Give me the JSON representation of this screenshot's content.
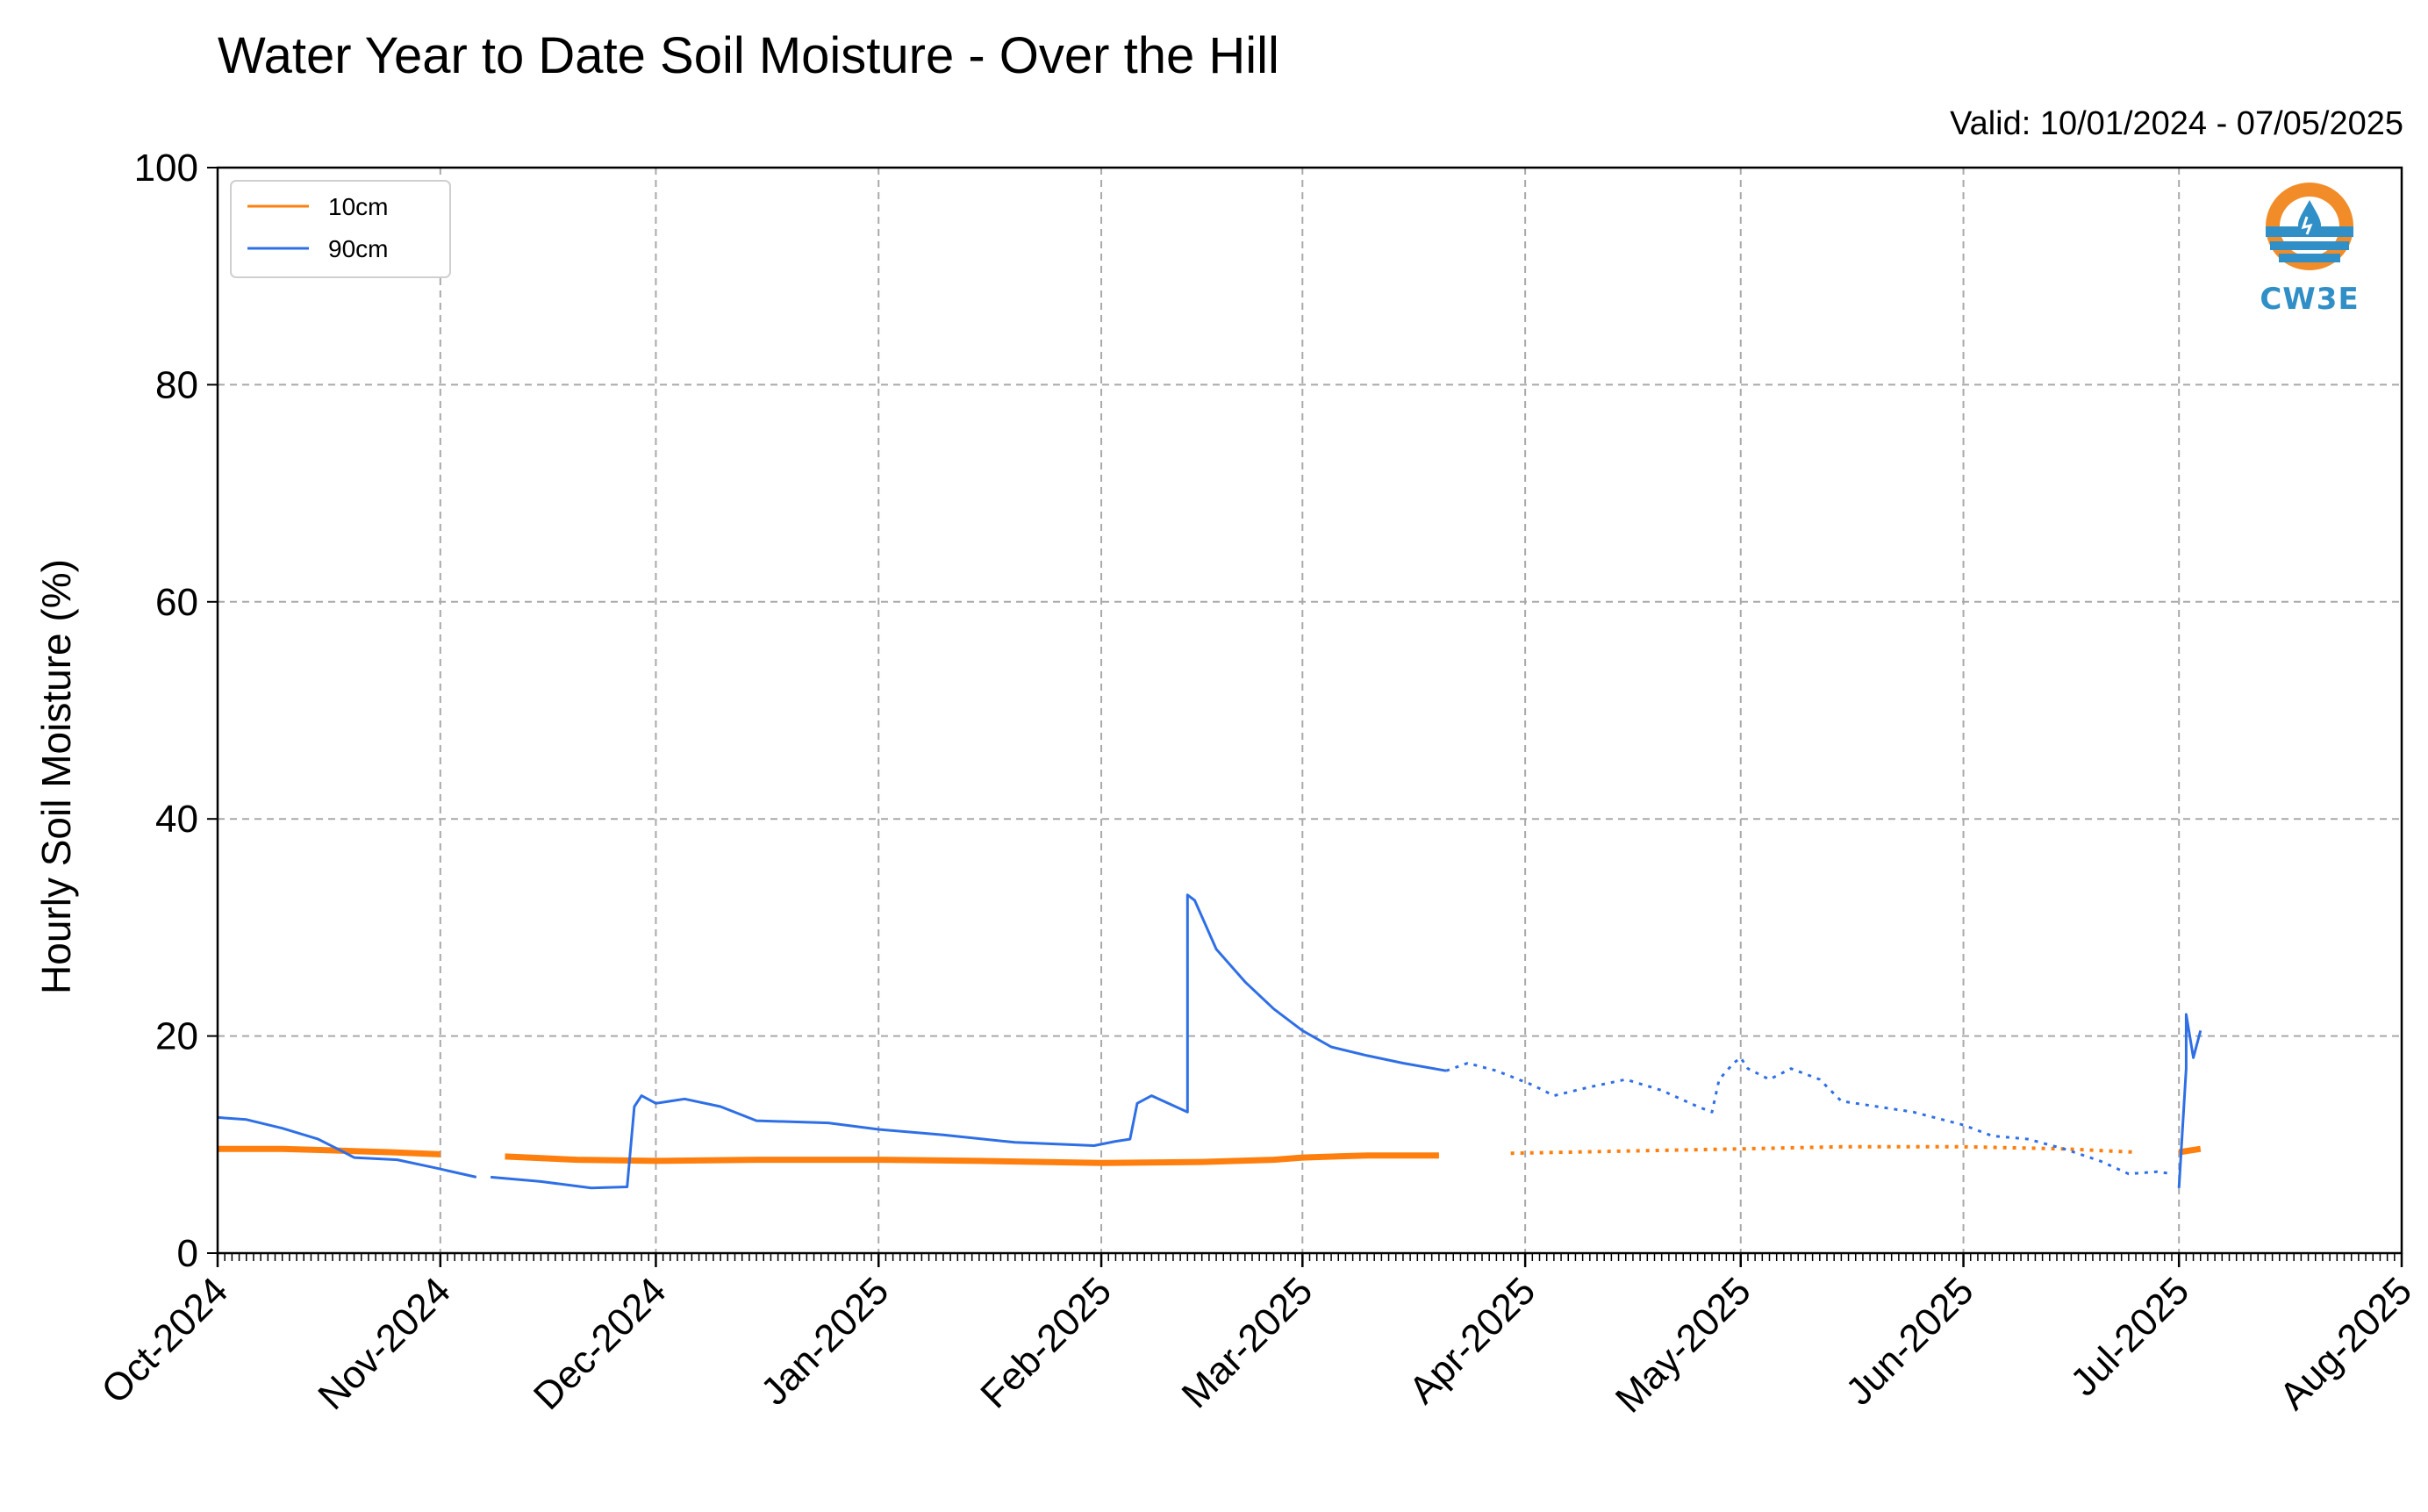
{
  "header": {
    "title": "Water Year to Date Soil Moisture - Over the Hill",
    "valid": "Valid: 10/01/2024 - 07/05/2025"
  },
  "logo": {
    "text": "CW3E",
    "icon": "cw3e-water-drop-logo"
  },
  "colors": {
    "10cm": "#ff7f0e",
    "90cm": "#2f6fe6",
    "grid": "#a9a9a9",
    "logo_orange": "#f28c28",
    "logo_blue": "#2f8fc6"
  },
  "chart_data": {
    "type": "line",
    "title": "Water Year to Date Soil Moisture - Over the Hill",
    "ylabel": "Hourly Soil Moisture (%)",
    "xlabel": "",
    "ylim": [
      0,
      100
    ],
    "yticks": [
      0,
      20,
      40,
      60,
      80,
      100
    ],
    "xlim": [
      "2024-10-01",
      "2025-08-01"
    ],
    "xticks": [
      {
        "date": "2024-10-01",
        "label": "Oct-2024"
      },
      {
        "date": "2024-11-01",
        "label": "Nov-2024"
      },
      {
        "date": "2024-12-01",
        "label": "Dec-2024"
      },
      {
        "date": "2025-01-01",
        "label": "Jan-2025"
      },
      {
        "date": "2025-02-01",
        "label": "Feb-2025"
      },
      {
        "date": "2025-03-01",
        "label": "Mar-2025"
      },
      {
        "date": "2025-04-01",
        "label": "Apr-2025"
      },
      {
        "date": "2025-05-01",
        "label": "May-2025"
      },
      {
        "date": "2025-06-01",
        "label": "Jun-2025"
      },
      {
        "date": "2025-07-01",
        "label": "Jul-2025"
      },
      {
        "date": "2025-08-01",
        "label": "Aug-2025"
      }
    ],
    "grid": true,
    "legend_position": "top-left",
    "series": [
      {
        "name": "10cm",
        "color": "#ff7f0e",
        "points": [
          [
            "2024-10-01",
            9.6
          ],
          [
            "2024-10-10",
            9.6
          ],
          [
            "2024-10-20",
            9.4
          ],
          [
            "2024-10-25",
            9.3
          ],
          [
            "2024-11-01",
            9.1
          ],
          [
            "2024-11-10",
            8.9
          ],
          [
            "2024-11-20",
            8.6
          ],
          [
            "2024-12-01",
            8.5
          ],
          [
            "2024-12-15",
            8.6
          ],
          [
            "2025-01-01",
            8.6
          ],
          [
            "2025-01-15",
            8.5
          ],
          [
            "2025-02-01",
            8.3
          ],
          [
            "2025-02-15",
            8.4
          ],
          [
            "2025-02-25",
            8.6
          ],
          [
            "2025-03-01",
            8.8
          ],
          [
            "2025-03-10",
            9.0
          ],
          [
            "2025-03-20",
            9.0
          ],
          [
            "2025-03-30",
            9.2
          ],
          [
            "2025-04-15",
            9.4
          ],
          [
            "2025-05-01",
            9.6
          ],
          [
            "2025-05-15",
            9.8
          ],
          [
            "2025-06-01",
            9.8
          ],
          [
            "2025-06-15",
            9.6
          ],
          [
            "2025-06-25",
            9.3
          ],
          [
            "2025-07-01",
            9.3
          ],
          [
            "2025-07-04",
            9.6
          ]
        ],
        "segments": [
          {
            "from": "2024-10-01",
            "to": "2024-11-06",
            "style": "solid"
          },
          {
            "from": "2024-11-07",
            "to": "2025-03-21",
            "style": "solid"
          },
          {
            "from": "2025-03-21",
            "to": "2025-06-30",
            "style": "dotted"
          },
          {
            "from": "2025-07-01",
            "to": "2025-07-04",
            "style": "solid"
          }
        ]
      },
      {
        "name": "90cm",
        "color": "#2f6fe6",
        "points": [
          [
            "2024-10-01",
            12.5
          ],
          [
            "2024-10-05",
            12.3
          ],
          [
            "2024-10-10",
            11.5
          ],
          [
            "2024-10-15",
            10.5
          ],
          [
            "2024-10-18",
            9.5
          ],
          [
            "2024-10-20",
            8.8
          ],
          [
            "2024-10-26",
            8.6
          ],
          [
            "2024-10-31",
            7.9
          ],
          [
            "2024-11-06",
            7.0
          ],
          [
            "2024-11-08",
            7.0
          ],
          [
            "2024-11-15",
            6.6
          ],
          [
            "2024-11-22",
            6.0
          ],
          [
            "2024-11-27",
            6.1
          ],
          [
            "2024-11-28",
            13.5
          ],
          [
            "2024-11-29",
            14.5
          ],
          [
            "2024-12-01",
            13.8
          ],
          [
            "2024-12-05",
            14.2
          ],
          [
            "2024-12-10",
            13.5
          ],
          [
            "2024-12-15",
            12.2
          ],
          [
            "2024-12-25",
            12.0
          ],
          [
            "2025-01-01",
            11.4
          ],
          [
            "2025-01-10",
            10.9
          ],
          [
            "2025-01-20",
            10.2
          ],
          [
            "2025-01-31",
            9.9
          ],
          [
            "2025-02-03",
            10.3
          ],
          [
            "2025-02-05",
            10.5
          ],
          [
            "2025-02-06",
            13.8
          ],
          [
            "2025-02-08",
            14.5
          ],
          [
            "2025-02-12",
            13.3
          ],
          [
            "2025-02-13",
            13.0
          ],
          [
            "2025-02-13",
            33.0
          ],
          [
            "2025-02-14",
            32.5
          ],
          [
            "2025-02-17",
            28.0
          ],
          [
            "2025-02-21",
            25.0
          ],
          [
            "2025-02-25",
            22.5
          ],
          [
            "2025-03-01",
            20.5
          ],
          [
            "2025-03-05",
            19.0
          ],
          [
            "2025-03-10",
            18.2
          ],
          [
            "2025-03-15",
            17.5
          ],
          [
            "2025-03-21",
            16.8
          ],
          [
            "2025-03-24",
            17.5
          ],
          [
            "2025-03-28",
            16.8
          ],
          [
            "2025-04-02",
            15.5
          ],
          [
            "2025-04-05",
            14.5
          ],
          [
            "2025-04-10",
            15.3
          ],
          [
            "2025-04-15",
            16.0
          ],
          [
            "2025-04-20",
            15.0
          ],
          [
            "2025-04-25",
            13.5
          ],
          [
            "2025-04-27",
            13.0
          ],
          [
            "2025-04-28",
            16.0
          ],
          [
            "2025-04-30",
            17.5
          ],
          [
            "2025-05-01",
            18.0
          ],
          [
            "2025-05-02",
            17.0
          ],
          [
            "2025-05-05",
            16.0
          ],
          [
            "2025-05-08",
            17.0
          ],
          [
            "2025-05-12",
            16.0
          ],
          [
            "2025-05-15",
            14.0
          ],
          [
            "2025-05-20",
            13.5
          ],
          [
            "2025-05-25",
            13.0
          ],
          [
            "2025-06-01",
            11.8
          ],
          [
            "2025-06-05",
            10.8
          ],
          [
            "2025-06-10",
            10.5
          ],
          [
            "2025-06-15",
            9.6
          ],
          [
            "2025-06-20",
            8.5
          ],
          [
            "2025-06-24",
            7.3
          ],
          [
            "2025-06-28",
            7.5
          ],
          [
            "2025-06-30",
            7.3
          ],
          [
            "2025-07-01",
            6.0
          ],
          [
            "2025-07-02",
            17.0
          ],
          [
            "2025-07-02",
            22.0
          ],
          [
            "2025-07-03",
            18.0
          ],
          [
            "2025-07-04",
            20.5
          ]
        ],
        "segments": [
          {
            "from": "2024-10-01",
            "to": "2024-11-06",
            "style": "solid"
          },
          {
            "from": "2024-11-08",
            "to": "2025-03-21",
            "style": "solid"
          },
          {
            "from": "2025-03-21",
            "to": "2025-06-30",
            "style": "dotted"
          },
          {
            "from": "2025-07-01",
            "to": "2025-07-04",
            "style": "solid"
          }
        ]
      }
    ]
  }
}
